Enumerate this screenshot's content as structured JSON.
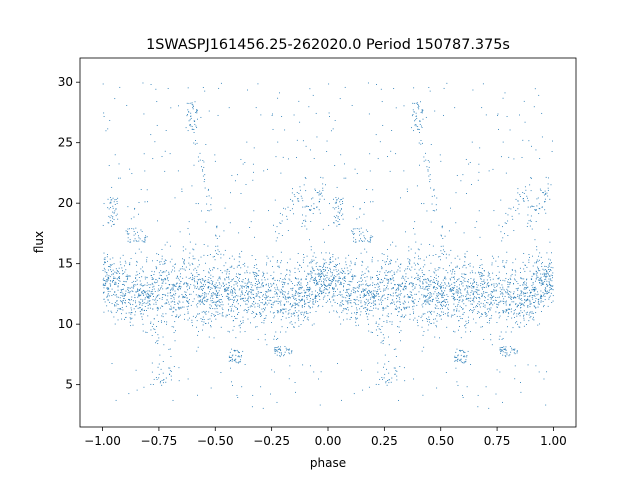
{
  "chart_data": {
    "type": "scatter",
    "title": "1SWASPJ161456.25-262020.0 Period 150787.375s",
    "xlabel": "phase",
    "ylabel": "flux",
    "xlim": [
      -1.1,
      1.1
    ],
    "ylim": [
      1.5,
      32.0
    ],
    "xticks": [
      -1.0,
      -0.75,
      -0.5,
      -0.25,
      0.0,
      0.25,
      0.5,
      0.75,
      1.0
    ],
    "xtick_labels": [
      "−1.00",
      "−0.75",
      "−0.50",
      "−0.25",
      "0.00",
      "0.25",
      "0.50",
      "0.75",
      "1.00"
    ],
    "yticks": [
      5,
      10,
      15,
      20,
      25,
      30
    ],
    "ytick_labels": [
      "5",
      "10",
      "15",
      "20",
      "25",
      "30"
    ],
    "grid": false,
    "legend": false,
    "marker_color": "#1f77b4",
    "phase_folded": true,
    "approx_points_per_cycle": 2400,
    "density_profile": [
      {
        "phase": 0.0,
        "median": 13.6,
        "spread_low": 10.0,
        "spread_high": 15.0
      },
      {
        "phase": 0.05,
        "median": 13.0,
        "spread_low": 9.5,
        "spread_high": 14.5
      },
      {
        "phase": 0.1,
        "median": 12.8,
        "spread_low": 8.5,
        "spread_high": 14.5
      },
      {
        "phase": 0.15,
        "median": 12.6,
        "spread_low": 8.8,
        "spread_high": 14.8
      },
      {
        "phase": 0.2,
        "median": 12.4,
        "spread_low": 9.0,
        "spread_high": 15.0
      },
      {
        "phase": 0.25,
        "median": 12.8,
        "spread_low": 8.0,
        "spread_high": 15.2
      },
      {
        "phase": 0.3,
        "median": 12.6,
        "spread_low": 8.5,
        "spread_high": 15.0
      },
      {
        "phase": 0.35,
        "median": 13.0,
        "spread_low": 9.5,
        "spread_high": 15.2
      },
      {
        "phase": 0.4,
        "median": 13.0,
        "spread_low": 9.0,
        "spread_high": 15.5
      },
      {
        "phase": 0.45,
        "median": 12.5,
        "spread_low": 9.0,
        "spread_high": 15.5
      },
      {
        "phase": 0.5,
        "median": 12.6,
        "spread_low": 9.0,
        "spread_high": 15.0
      },
      {
        "phase": 0.55,
        "median": 12.8,
        "spread_low": 9.0,
        "spread_high": 14.8
      },
      {
        "phase": 0.6,
        "median": 12.4,
        "spread_low": 8.5,
        "spread_high": 14.8
      },
      {
        "phase": 0.65,
        "median": 12.8,
        "spread_low": 9.5,
        "spread_high": 14.5
      },
      {
        "phase": 0.7,
        "median": 12.4,
        "spread_low": 9.0,
        "spread_high": 15.0
      },
      {
        "phase": 0.75,
        "median": 12.6,
        "spread_low": 9.0,
        "spread_high": 14.8
      },
      {
        "phase": 0.8,
        "median": 12.4,
        "spread_low": 9.0,
        "spread_high": 15.0
      },
      {
        "phase": 0.85,
        "median": 12.0,
        "spread_low": 9.0,
        "spread_high": 14.5
      },
      {
        "phase": 0.9,
        "median": 12.5,
        "spread_low": 9.0,
        "spread_high": 14.5
      },
      {
        "phase": 0.95,
        "median": 13.6,
        "spread_low": 10.0,
        "spread_high": 15.0
      },
      {
        "phase": 1.0,
        "median": 13.6,
        "spread_low": 10.0,
        "spread_high": 15.0
      }
    ],
    "features": [
      {
        "phase_start": 0.37,
        "phase_end": 0.42,
        "flux_low": 26.0,
        "flux_high": 28.5,
        "label": "bright clump"
      },
      {
        "phase_start": 0.4,
        "phase_end": 0.52,
        "flux_low": 16.0,
        "flux_high": 26.0,
        "label": "rising streak"
      },
      {
        "phase_start": 0.02,
        "phase_end": 0.07,
        "flux_low": 18.0,
        "flux_high": 20.5,
        "label": "upper clump"
      },
      {
        "phase_start": 0.1,
        "phase_end": 0.2,
        "flux_low": 16.8,
        "flux_high": 18.0,
        "label": "upper band"
      },
      {
        "phase_start": 0.75,
        "phase_end": 0.9,
        "flux_low": 17.0,
        "flux_high": 22.0,
        "label": "diagonal streak"
      },
      {
        "phase_start": 0.88,
        "phase_end": 0.99,
        "flux_low": 18.0,
        "flux_high": 22.0,
        "label": "late upper streak"
      },
      {
        "phase_start": 0.2,
        "phase_end": 0.34,
        "flux_low": 4.8,
        "flux_high": 9.0,
        "label": "low dip"
      },
      {
        "phase_start": 0.56,
        "phase_end": 0.62,
        "flux_low": 6.8,
        "flux_high": 8.0,
        "label": "low band"
      },
      {
        "phase_start": 0.76,
        "phase_end": 0.84,
        "flux_low": 7.3,
        "flux_high": 8.2,
        "label": "low band 2"
      }
    ]
  }
}
